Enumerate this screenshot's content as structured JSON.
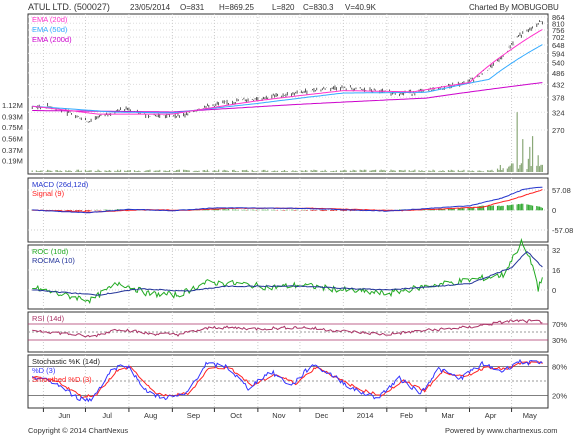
{
  "header": {
    "title": "ATUL LTD. (500027)",
    "date": "23/05/2014",
    "open": "O=831",
    "high": "H=869.25",
    "low": "L=820",
    "close": "C=830.3",
    "volume": "V=40.9K",
    "charted_by": "Charted By MOBUGOBU"
  },
  "footer": {
    "copyright": "Copyright © 2014 ChartNexus",
    "powered_by": "Powered by www.chartnexus.com"
  },
  "colors": {
    "ema20": "#ff33cc",
    "ema50": "#33aaff",
    "ema200": "#cc00cc",
    "price": "#333333",
    "volume": "#8aa878",
    "macd": "#2233cc",
    "signal": "#ff2222",
    "roc": "#22aa22",
    "rocma": "#223399",
    "rsi": "#aa3366",
    "stoch_k": "#3333ff",
    "stoch_d": "#ff2222",
    "refline": "#aa3366"
  },
  "chart_data": [
    {
      "type": "candlestick",
      "panel": "price",
      "legend": [
        "EMA (20d)",
        "EMA (50d)",
        "EMA (200d)"
      ],
      "yticks": [
        "864",
        "810",
        "756",
        "702",
        "648",
        "594",
        "540",
        "486",
        "432",
        "378",
        "324",
        "270"
      ],
      "volume_ticks": [
        "1.12M",
        "0.93M",
        "0.75M",
        "0.56M",
        "0.37M",
        "0.19M"
      ],
      "x_months": [
        "Jun",
        "Jul",
        "Aug",
        "Sep",
        "Oct",
        "Nov",
        "Dec",
        "2014",
        "Feb",
        "Mar",
        "Apr",
        "May"
      ],
      "close_keypoints": [
        [
          "2013-05-24",
          340
        ],
        [
          "2013-06-05",
          345
        ],
        [
          "2013-06-20",
          322
        ],
        [
          "2013-07-03",
          295
        ],
        [
          "2013-07-15",
          318
        ],
        [
          "2013-07-30",
          335
        ],
        [
          "2013-08-10",
          318
        ],
        [
          "2013-08-25",
          312
        ],
        [
          "2013-09-10",
          315
        ],
        [
          "2013-09-25",
          345
        ],
        [
          "2013-10-15",
          362
        ],
        [
          "2013-10-30",
          372
        ],
        [
          "2013-11-15",
          385
        ],
        [
          "2013-11-28",
          392
        ],
        [
          "2013-12-10",
          408
        ],
        [
          "2013-12-25",
          418
        ],
        [
          "2014-01-10",
          412
        ],
        [
          "2014-01-25",
          402
        ],
        [
          "2014-02-10",
          395
        ],
        [
          "2014-02-25",
          400
        ],
        [
          "2014-03-10",
          415
        ],
        [
          "2014-03-25",
          432
        ],
        [
          "2014-04-05",
          460
        ],
        [
          "2014-04-15",
          510
        ],
        [
          "2014-04-25",
          575
        ],
        [
          "2014-05-05",
          705
        ],
        [
          "2014-05-12",
          740
        ],
        [
          "2014-05-18",
          790
        ],
        [
          "2014-05-23",
          830
        ]
      ],
      "ema_keypoints": {
        "ema20": [
          [
            "2013-05-24",
            345
          ],
          [
            "2013-07-10",
            318
          ],
          [
            "2013-09-01",
            318
          ],
          [
            "2013-11-01",
            365
          ],
          [
            "2014-01-01",
            405
          ],
          [
            "2014-02-20",
            400
          ],
          [
            "2014-04-01",
            440
          ],
          [
            "2014-05-01",
            620
          ],
          [
            "2014-05-23",
            760
          ]
        ],
        "ema50": [
          [
            "2013-05-24",
            345
          ],
          [
            "2013-07-20",
            325
          ],
          [
            "2013-09-01",
            322
          ],
          [
            "2013-11-01",
            355
          ],
          [
            "2014-01-01",
            395
          ],
          [
            "2014-03-01",
            398
          ],
          [
            "2014-04-15",
            455
          ],
          [
            "2014-05-23",
            650
          ]
        ],
        "ema200": [
          [
            "2013-05-24",
            330
          ],
          [
            "2013-09-01",
            325
          ],
          [
            "2013-12-01",
            352
          ],
          [
            "2014-03-01",
            375
          ],
          [
            "2014-05-23",
            440
          ]
        ]
      }
    },
    {
      "type": "line",
      "panel": "macd",
      "legend": [
        "MACD (26d,12d)",
        "Signal (9)"
      ],
      "yticks": [
        "57.08",
        "0",
        "-57.08"
      ],
      "macd_keypoints": [
        [
          "2013-05-24",
          0
        ],
        [
          "2013-07-01",
          -8
        ],
        [
          "2013-08-01",
          2
        ],
        [
          "2013-09-01",
          -2
        ],
        [
          "2013-10-01",
          6
        ],
        [
          "2013-12-01",
          5
        ],
        [
          "2014-02-01",
          -3
        ],
        [
          "2014-04-01",
          12
        ],
        [
          "2014-04-25",
          35
        ],
        [
          "2014-05-10",
          60
        ],
        [
          "2014-05-23",
          65
        ]
      ],
      "signal_keypoints": [
        [
          "2013-05-24",
          0
        ],
        [
          "2013-07-05",
          -6
        ],
        [
          "2013-08-10",
          1
        ],
        [
          "2013-09-10",
          -1
        ],
        [
          "2013-10-15",
          5
        ],
        [
          "2013-12-10",
          5
        ],
        [
          "2014-02-10",
          -2
        ],
        [
          "2014-04-10",
          8
        ],
        [
          "2014-05-01",
          30
        ],
        [
          "2014-05-23",
          58
        ]
      ]
    },
    {
      "type": "line",
      "panel": "roc",
      "legend": [
        "ROC (10d)",
        "ROCMA (10)"
      ],
      "yticks": [
        "32",
        "16",
        "0"
      ],
      "roc_keypoints": [
        [
          "2013-05-24",
          2
        ],
        [
          "2013-06-15",
          -4
        ],
        [
          "2013-07-05",
          -8
        ],
        [
          "2013-07-25",
          6
        ],
        [
          "2013-08-15",
          -3
        ],
        [
          "2013-09-05",
          -4
        ],
        [
          "2013-09-25",
          6
        ],
        [
          "2013-10-20",
          5
        ],
        [
          "2013-11-10",
          2
        ],
        [
          "2013-12-01",
          4
        ],
        [
          "2014-01-01",
          0
        ],
        [
          "2014-02-01",
          -3
        ],
        [
          "2014-03-01",
          3
        ],
        [
          "2014-04-01",
          8
        ],
        [
          "2014-04-25",
          12
        ],
        [
          "2014-05-08",
          38
        ],
        [
          "2014-05-16",
          20
        ],
        [
          "2014-05-20",
          1
        ],
        [
          "2014-05-23",
          10
        ]
      ],
      "rocma_keypoints": [
        [
          "2013-05-24",
          0
        ],
        [
          "2013-07-10",
          -4
        ],
        [
          "2013-08-10",
          1
        ],
        [
          "2013-09-10",
          -1
        ],
        [
          "2013-10-10",
          3
        ],
        [
          "2013-12-01",
          3
        ],
        [
          "2014-02-01",
          0
        ],
        [
          "2014-04-01",
          5
        ],
        [
          "2014-05-01",
          18
        ],
        [
          "2014-05-12",
          31
        ],
        [
          "2014-05-23",
          18
        ]
      ]
    },
    {
      "type": "line",
      "panel": "rsi",
      "legend": [
        "RSI (14d)"
      ],
      "yticks": [
        "70%",
        "30%"
      ],
      "rsi_keypoints": [
        [
          "2013-05-24",
          55
        ],
        [
          "2013-06-20",
          45
        ],
        [
          "2013-07-05",
          38
        ],
        [
          "2013-07-25",
          58
        ],
        [
          "2013-08-15",
          46
        ],
        [
          "2013-09-05",
          44
        ],
        [
          "2013-10-01",
          62
        ],
        [
          "2013-11-01",
          58
        ],
        [
          "2013-12-01",
          62
        ],
        [
          "2014-01-01",
          52
        ],
        [
          "2014-02-01",
          44
        ],
        [
          "2014-03-01",
          54
        ],
        [
          "2014-04-01",
          62
        ],
        [
          "2014-05-01",
          78
        ],
        [
          "2014-05-23",
          76
        ]
      ]
    },
    {
      "type": "line",
      "panel": "stochastic",
      "legend": [
        "Stochastic %K (14d)",
        "%D (3)",
        "Smoothed %D (3)"
      ],
      "yticks": [
        "80%",
        "20%"
      ],
      "k_keypoints": [
        [
          "2013-05-24",
          60
        ],
        [
          "2013-06-10",
          45
        ],
        [
          "2013-06-25",
          15
        ],
        [
          "2013-07-05",
          10
        ],
        [
          "2013-07-20",
          75
        ],
        [
          "2013-07-30",
          85
        ],
        [
          "2013-08-15",
          25
        ],
        [
          "2013-08-25",
          15
        ],
        [
          "2013-09-10",
          20
        ],
        [
          "2013-09-25",
          85
        ],
        [
          "2013-10-10",
          80
        ],
        [
          "2013-10-25",
          35
        ],
        [
          "2013-11-10",
          70
        ],
        [
          "2013-11-25",
          40
        ],
        [
          "2013-12-10",
          85
        ],
        [
          "2013-12-25",
          60
        ],
        [
          "2014-01-10",
          30
        ],
        [
          "2014-01-25",
          15
        ],
        [
          "2014-02-10",
          55
        ],
        [
          "2014-02-25",
          25
        ],
        [
          "2014-03-10",
          75
        ],
        [
          "2014-03-25",
          55
        ],
        [
          "2014-04-10",
          85
        ],
        [
          "2014-04-25",
          70
        ],
        [
          "2014-05-05",
          90
        ],
        [
          "2014-05-23",
          86
        ]
      ],
      "d_keypoints": [
        [
          "2013-05-24",
          58
        ],
        [
          "2013-06-12",
          48
        ],
        [
          "2013-06-28",
          18
        ],
        [
          "2013-07-08",
          20
        ],
        [
          "2013-07-23",
          70
        ],
        [
          "2013-08-02",
          80
        ],
        [
          "2013-08-18",
          28
        ],
        [
          "2013-08-28",
          18
        ],
        [
          "2013-09-13",
          25
        ],
        [
          "2013-09-28",
          80
        ],
        [
          "2013-10-13",
          76
        ],
        [
          "2013-10-28",
          40
        ],
        [
          "2013-11-13",
          64
        ],
        [
          "2013-11-28",
          45
        ],
        [
          "2013-12-13",
          80
        ],
        [
          "2013-12-28",
          55
        ],
        [
          "2014-01-13",
          32
        ],
        [
          "2014-01-28",
          20
        ],
        [
          "2014-02-13",
          50
        ],
        [
          "2014-02-28",
          30
        ],
        [
          "2014-03-13",
          70
        ],
        [
          "2014-03-28",
          58
        ],
        [
          "2014-04-13",
          80
        ],
        [
          "2014-04-28",
          74
        ],
        [
          "2014-05-08",
          88
        ],
        [
          "2014-05-23",
          87
        ]
      ]
    }
  ]
}
